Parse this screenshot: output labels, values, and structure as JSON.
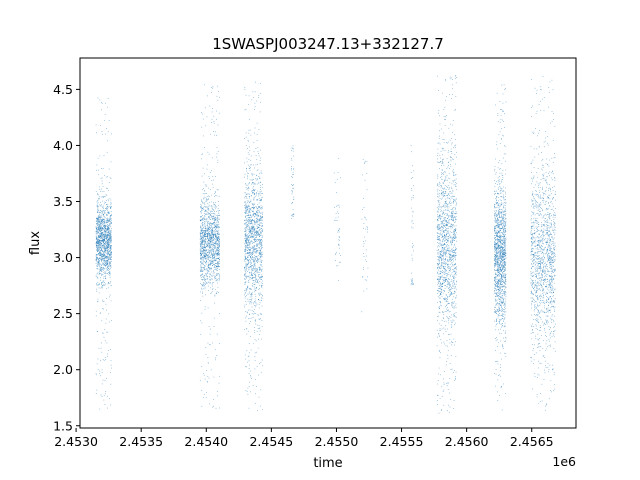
{
  "chart_data": {
    "type": "scatter",
    "title": "1SWASPJ003247.13+332127.7",
    "xlabel": "time",
    "ylabel": "flux",
    "x_offset_label": "1e6",
    "xlim": [
      2.45303,
      2.45684
    ],
    "ylim": [
      1.48,
      4.78
    ],
    "x_ticks": [
      2.453,
      2.4535,
      2.454,
      2.4545,
      2.455,
      2.4555,
      2.456,
      2.4565
    ],
    "x_tick_labels": [
      "2.4530",
      "2.4535",
      "2.4540",
      "2.4545",
      "2.4550",
      "2.4555",
      "2.4560",
      "2.4565"
    ],
    "y_ticks": [
      1.5,
      2.0,
      2.5,
      3.0,
      3.5,
      4.0,
      4.5
    ],
    "y_tick_labels": [
      "1.5",
      "2.0",
      "2.5",
      "3.0",
      "3.5",
      "4.0",
      "4.5"
    ],
    "grid": false,
    "marker_color": "#1f77b4",
    "observing_seasons": [
      {
        "x_range": [
          2.45315,
          2.45327
        ],
        "flux_center": 3.15,
        "flux_spread": 0.18,
        "flux_range": [
          1.65,
          4.43
        ],
        "density": "high"
      },
      {
        "x_range": [
          2.45395,
          2.4541
        ],
        "flux_center": 3.12,
        "flux_spread": 0.2,
        "flux_range": [
          1.65,
          4.55
        ],
        "density": "high"
      },
      {
        "x_range": [
          2.45429,
          2.45443
        ],
        "flux_center": 3.15,
        "flux_spread": 0.3,
        "flux_range": [
          1.63,
          4.63
        ],
        "density": "high"
      },
      {
        "x_range": [
          2.45465,
          2.45467
        ],
        "flux_center": 3.6,
        "flux_spread": 0.3,
        "flux_range": [
          3.35,
          4.02
        ],
        "density": "sparse"
      },
      {
        "x_range": [
          2.45498,
          2.45503
        ],
        "flux_center": 3.3,
        "flux_spread": 0.3,
        "flux_range": [
          2.65,
          3.95
        ],
        "density": "sparse"
      },
      {
        "x_range": [
          2.45519,
          2.45524
        ],
        "flux_center": 3.3,
        "flux_spread": 0.4,
        "flux_range": [
          2.5,
          3.9
        ],
        "density": "sparse"
      },
      {
        "x_range": [
          2.45557,
          2.45559
        ],
        "flux_center": 3.2,
        "flux_spread": 0.4,
        "flux_range": [
          2.75,
          4.13
        ],
        "density": "sparse"
      },
      {
        "x_range": [
          2.45577,
          2.45592
        ],
        "flux_center": 3.1,
        "flux_spread": 0.4,
        "flux_range": [
          1.6,
          4.63
        ],
        "density": "high"
      },
      {
        "x_range": [
          2.45621,
          2.4563
        ],
        "flux_center": 3.05,
        "flux_spread": 0.3,
        "flux_range": [
          1.63,
          4.55
        ],
        "density": "high"
      },
      {
        "x_range": [
          2.45649,
          2.45668
        ],
        "flux_center": 3.0,
        "flux_spread": 0.4,
        "flux_range": [
          1.62,
          4.62
        ],
        "density": "high"
      }
    ]
  }
}
